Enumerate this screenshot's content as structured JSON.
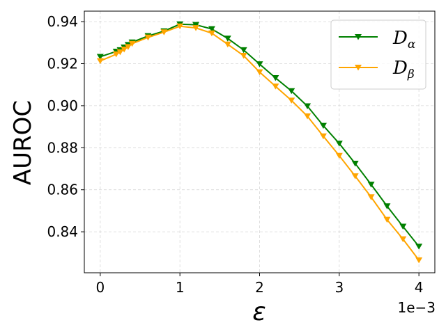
{
  "chart_data": {
    "type": "line",
    "xlabel": "ε",
    "ylabel": "AUROC",
    "x_offset_label": "1e−3",
    "xlim": [
      -0.2,
      4.2
    ],
    "ylim": [
      0.8205,
      0.945
    ],
    "xticks": [
      0,
      1,
      2,
      3,
      4
    ],
    "xtick_labels": [
      "0",
      "1",
      "2",
      "3",
      "4"
    ],
    "yticks": [
      0.84,
      0.86,
      0.88,
      0.9,
      0.92,
      0.94
    ],
    "ytick_labels": [
      "0.84",
      "0.86",
      "0.88",
      "0.90",
      "0.92",
      "0.94"
    ],
    "grid": true,
    "legend_position": "top-right",
    "x": [
      0,
      0.2,
      0.25,
      0.3,
      0.35,
      0.4,
      0.6,
      0.8,
      1.0,
      1.2,
      1.4,
      1.6,
      1.8,
      2.0,
      2.2,
      2.4,
      2.6,
      2.8,
      3.0,
      3.2,
      3.4,
      3.6,
      3.8,
      4.0
    ],
    "series": [
      {
        "name_main": "D",
        "name_sub": "α",
        "color": "#008000",
        "values": [
          0.9233,
          0.9258,
          0.9265,
          0.9278,
          0.929,
          0.9302,
          0.9332,
          0.9355,
          0.9388,
          0.9385,
          0.9365,
          0.932,
          0.9265,
          0.9198,
          0.9132,
          0.907,
          0.8998,
          0.8905,
          0.882,
          0.8725,
          0.8625,
          0.8522,
          0.8425,
          0.833
        ]
      },
      {
        "name_main": "D",
        "name_sub": "β",
        "color": "#ffa500",
        "values": [
          0.9213,
          0.9245,
          0.9255,
          0.9268,
          0.928,
          0.9295,
          0.9325,
          0.935,
          0.9378,
          0.937,
          0.9345,
          0.9292,
          0.9238,
          0.916,
          0.9092,
          0.9025,
          0.895,
          0.8855,
          0.8762,
          0.8665,
          0.8565,
          0.8458,
          0.8365,
          0.8265
        ]
      }
    ]
  }
}
